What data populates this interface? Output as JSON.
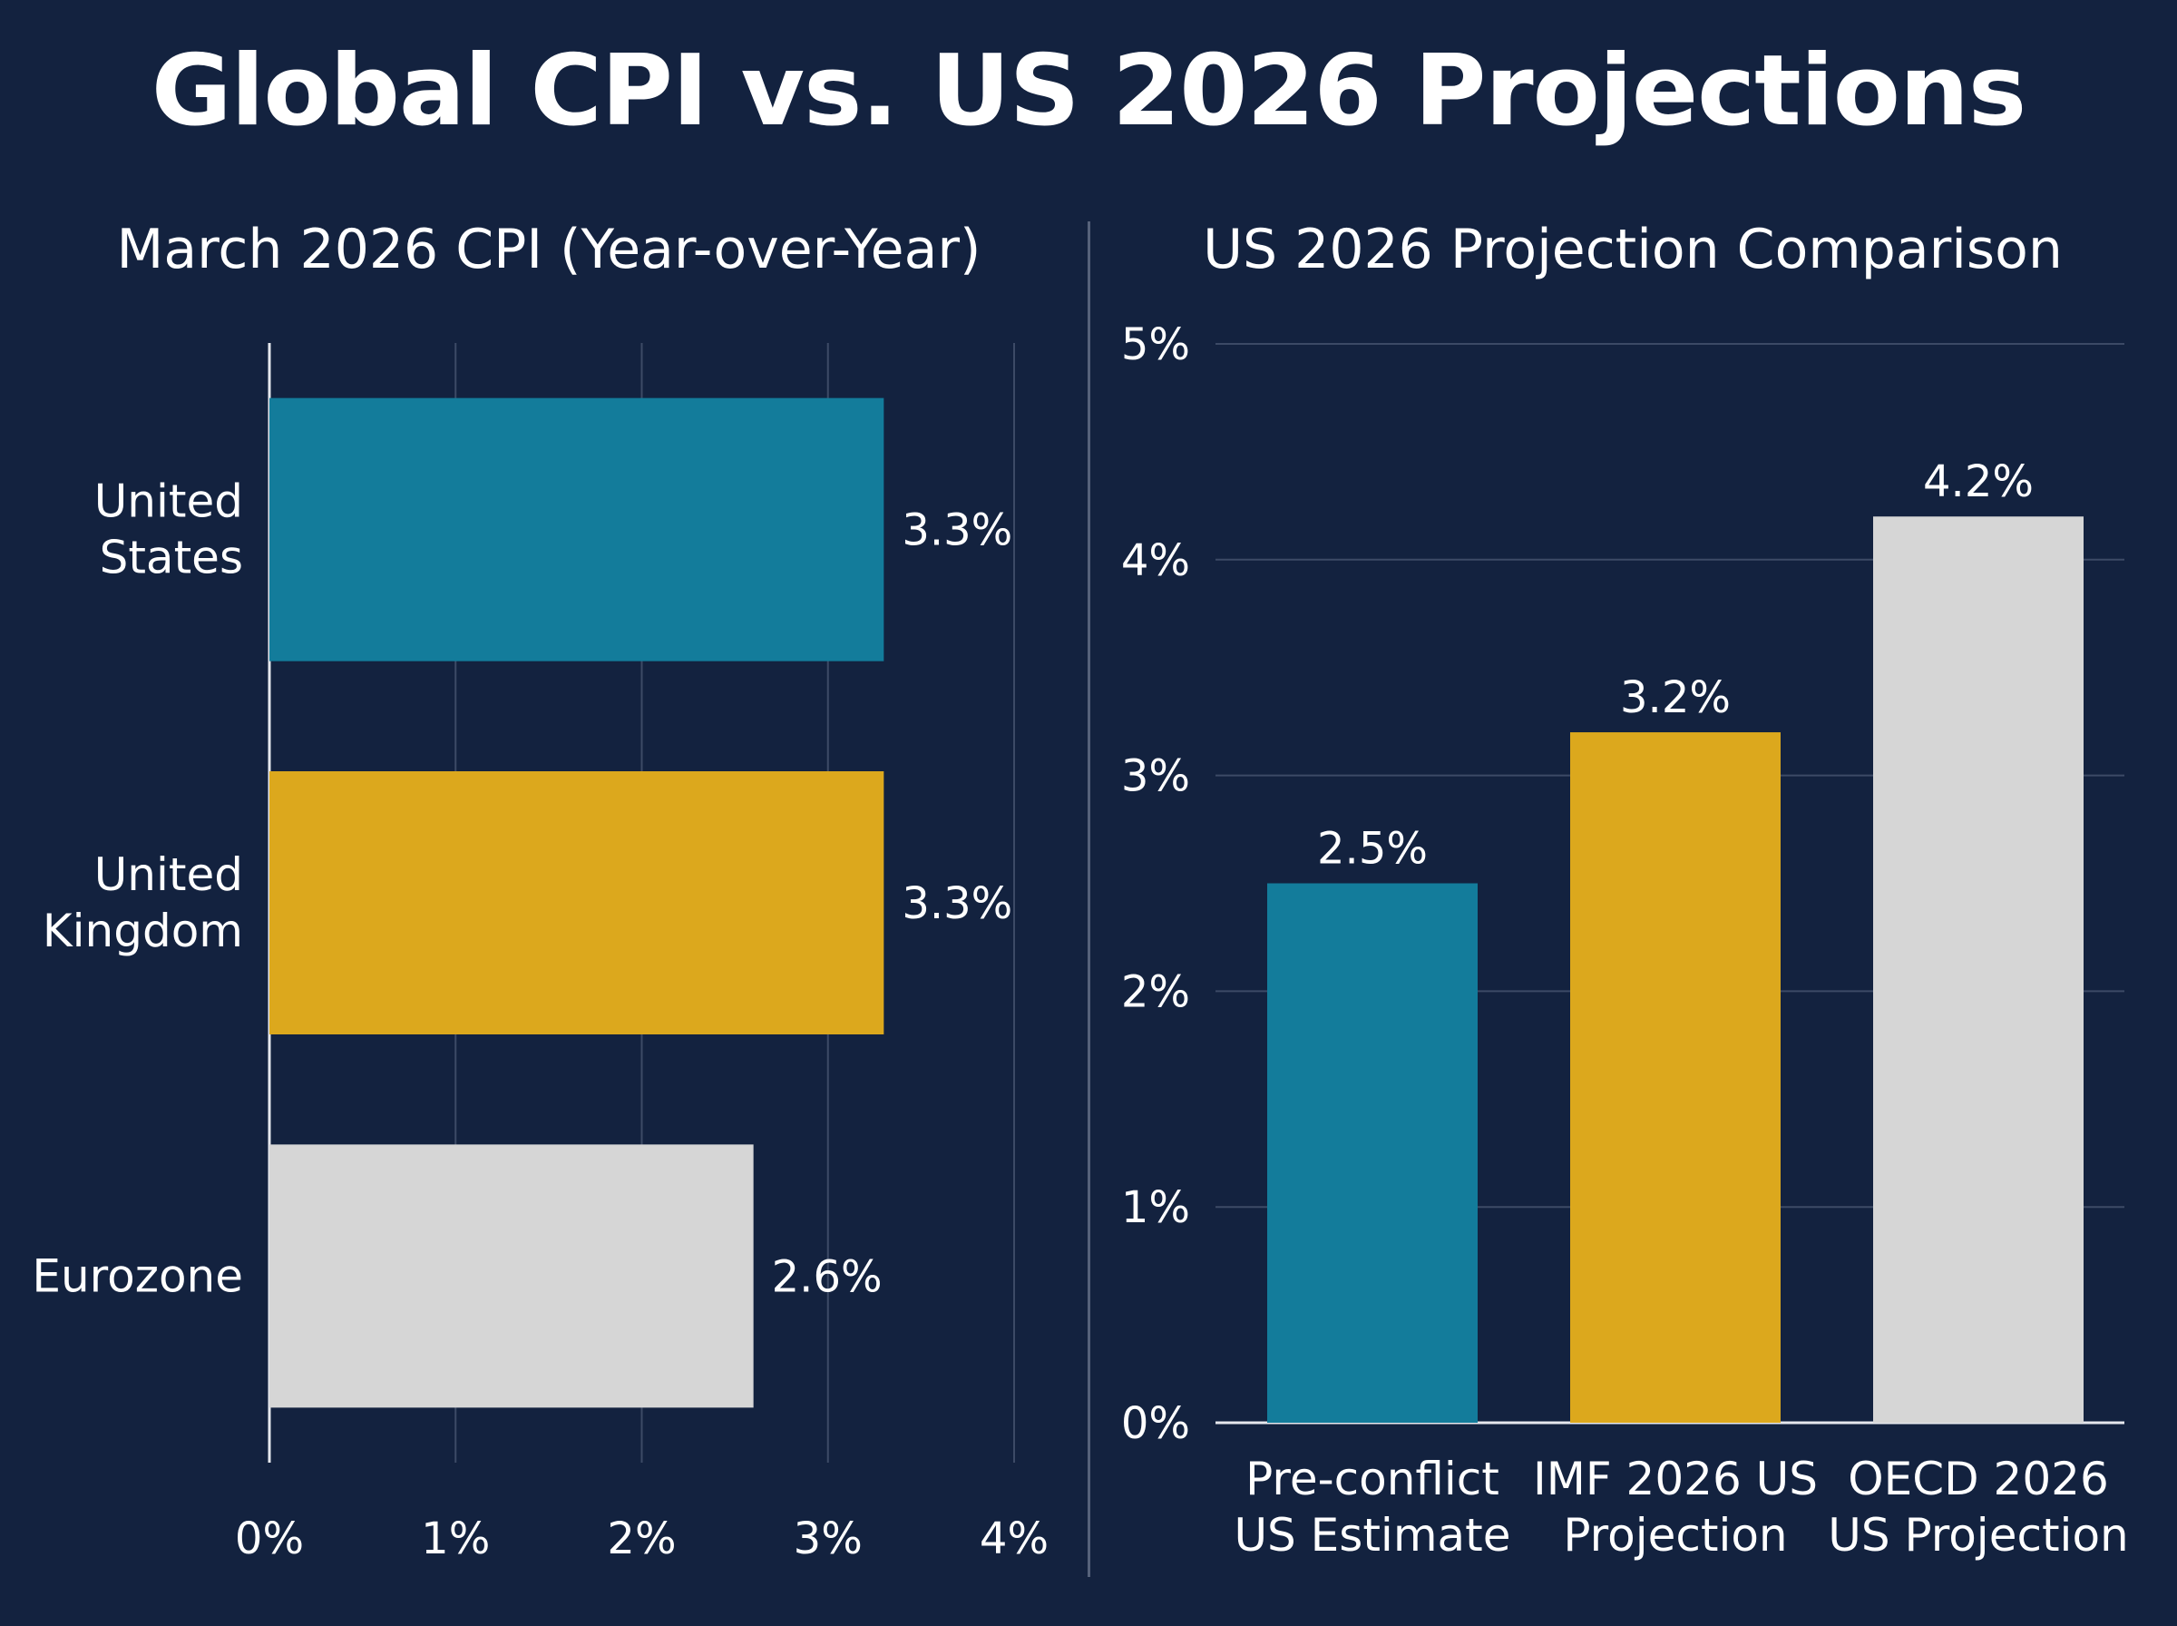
{
  "title": "Global CPI vs. US 2026 Projections",
  "colors": {
    "background": "#13223f",
    "teal": "#137c9b",
    "gold": "#dca81d",
    "light": "#d6d6d6",
    "grid": "#3c4a66"
  },
  "chart_data": [
    {
      "type": "bar",
      "orientation": "horizontal",
      "title": "March 2026 CPI (Year-over-Year)",
      "categories": [
        [
          "United",
          "States"
        ],
        [
          "United",
          "Kingdom"
        ],
        [
          "Eurozone"
        ]
      ],
      "values": [
        3.3,
        3.3,
        2.6
      ],
      "value_labels": [
        "3.3%",
        "3.3%",
        "2.6%"
      ],
      "bar_colors": [
        "#137c9b",
        "#dca81d",
        "#d6d6d6"
      ],
      "xlim": [
        0,
        4
      ],
      "ticks": [
        0,
        1,
        2,
        3,
        4
      ],
      "tick_labels": [
        "0%",
        "1%",
        "2%",
        "3%",
        "4%"
      ],
      "grid": "vertical"
    },
    {
      "type": "bar",
      "orientation": "vertical",
      "title": "US 2026 Projection Comparison",
      "categories": [
        [
          "Pre-conflict",
          "US Estimate"
        ],
        [
          "IMF 2026 US",
          "Projection"
        ],
        [
          "OECD 2026",
          "US Projection"
        ]
      ],
      "values": [
        2.5,
        3.2,
        4.2
      ],
      "value_labels": [
        "2.5%",
        "3.2%",
        "4.2%"
      ],
      "bar_colors": [
        "#137c9b",
        "#dca81d",
        "#d6d6d6"
      ],
      "ylim": [
        0,
        5
      ],
      "ticks": [
        0,
        1,
        2,
        3,
        4,
        5
      ],
      "tick_labels": [
        "0%",
        "1%",
        "2%",
        "3%",
        "4%",
        "5%"
      ],
      "grid": "horizontal"
    }
  ]
}
